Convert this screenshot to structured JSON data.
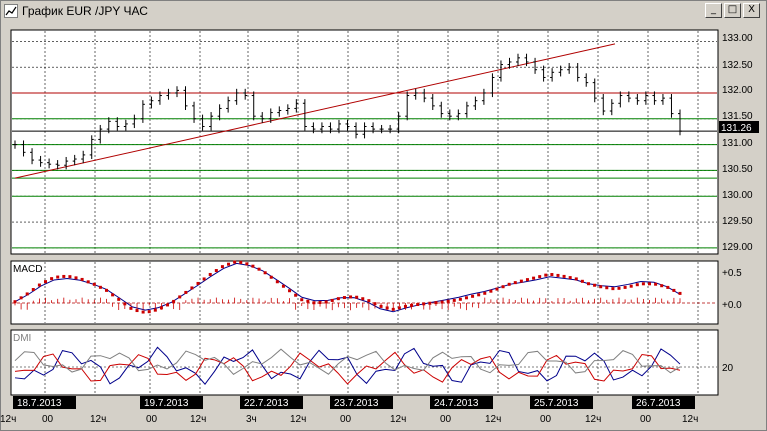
{
  "window": {
    "title": "График EUR /JPY ЧАС",
    "buttons": [
      {
        "name": "minimize",
        "glyph": "_"
      },
      {
        "name": "maximize",
        "glyph": "□"
      },
      {
        "name": "close",
        "glyph": "X"
      }
    ]
  },
  "price_axis": {
    "labels": [
      "133.00",
      "132.50",
      "132.00",
      "131.50",
      "131.00",
      "130.50",
      "130.00",
      "129.50",
      "129.00"
    ],
    "current_price": "131.26",
    "ylim": [
      128.9,
      133.2
    ]
  },
  "macd_panel": {
    "title": "MACD",
    "axis_labels": [
      "+0.5",
      "+0.0"
    ]
  },
  "dmi_panel": {
    "title": "DMI",
    "axis_labels": [
      "20"
    ]
  },
  "time_axis": {
    "dates": [
      "18.7.2013",
      "19.7.2013",
      "22.7.2013",
      "23.7.2013",
      "24.7.2013",
      "25.7.2013",
      "26.7.2013"
    ],
    "hour_labels": [
      "12ч",
      "00",
      "12ч",
      "00",
      "12ч",
      "3ч",
      "12ч",
      "00",
      "12ч",
      "00",
      "12ч",
      "00",
      "12ч",
      "00",
      "12ч"
    ]
  },
  "chart_data": {
    "type": "line",
    "title": "График EUR /JPY ЧАС",
    "candles_close": [
      131.0,
      130.85,
      130.7,
      130.65,
      130.62,
      130.6,
      130.68,
      130.72,
      130.8,
      131.1,
      131.3,
      131.45,
      131.35,
      131.4,
      131.5,
      131.78,
      131.85,
      131.95,
      132.0,
      132.05,
      131.75,
      131.5,
      131.35,
      131.55,
      131.7,
      131.85,
      132.0,
      131.95,
      131.55,
      131.5,
      131.62,
      131.66,
      131.7,
      131.8,
      131.35,
      131.3,
      131.35,
      131.3,
      131.4,
      131.35,
      131.2,
      131.35,
      131.3,
      131.3,
      131.3,
      131.55,
      131.95,
      132.0,
      131.9,
      131.75,
      131.6,
      131.55,
      131.6,
      131.75,
      131.85,
      132.0,
      132.3,
      132.55,
      132.6,
      132.68,
      132.6,
      132.45,
      132.3,
      132.4,
      132.45,
      132.5,
      132.3,
      132.2,
      131.9,
      131.65,
      131.8,
      131.95,
      131.9,
      131.85,
      131.95,
      131.85,
      131.9,
      131.6,
      131.26
    ],
    "indicator_levels": [
      133.0,
      132.0,
      131.5,
      131.26,
      131.0,
      130.5,
      130.0,
      129.5,
      129.0
    ],
    "macd_series": [
      0.02,
      0.15,
      0.3,
      0.4,
      0.42,
      0.38,
      0.3,
      0.2,
      0.05,
      -0.1,
      -0.15,
      -0.1,
      0.0,
      0.15,
      0.3,
      0.45,
      0.58,
      0.65,
      0.6,
      0.5,
      0.35,
      0.2,
      0.05,
      0.0,
      0.02,
      0.08,
      0.1,
      0.05,
      -0.05,
      -0.1,
      -0.05,
      -0.02,
      0.0,
      0.02,
      0.05,
      0.1,
      0.15,
      0.22,
      0.3,
      0.35,
      0.4,
      0.45,
      0.42,
      0.38,
      0.3,
      0.25,
      0.22,
      0.25,
      0.3,
      0.3,
      0.25,
      0.15
    ],
    "dmi_level": 20
  }
}
